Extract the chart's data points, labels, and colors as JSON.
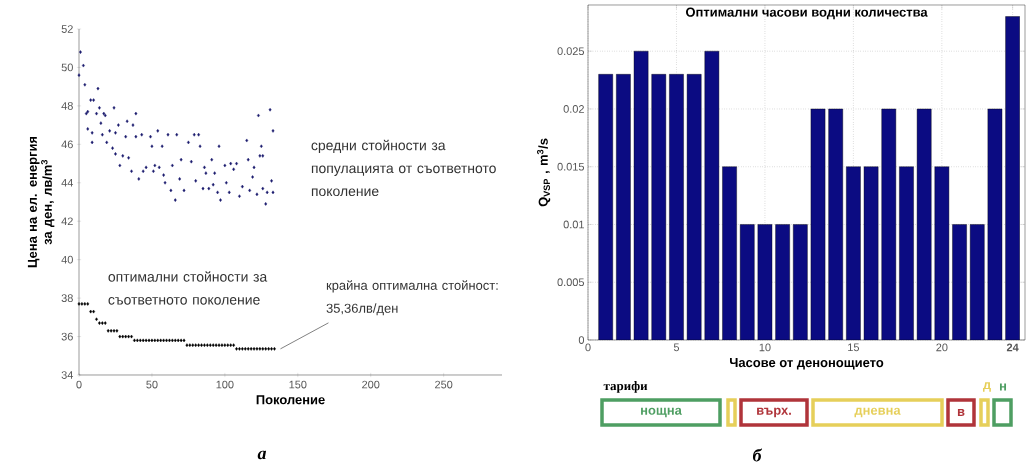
{
  "chart_data": [
    {
      "type": "scatter",
      "xlabel": "Поколение",
      "ylabel": "Цена на ел. енергия за ден, лв/m$^{3}$",
      "xlim": [
        0,
        290
      ],
      "ylim": [
        34,
        52
      ],
      "xticks": [
        0,
        50,
        100,
        150,
        200,
        250
      ],
      "yticks": [
        34,
        36,
        38,
        40,
        42,
        44,
        46,
        48,
        50,
        52
      ],
      "marker": "diamond",
      "grid": false,
      "series": [
        {
          "name": "средни стойности за популацията от съответното поколение",
          "color": "#1c1c6e",
          "x": [
            0,
            1,
            3,
            4,
            5,
            6,
            6,
            8,
            9,
            10,
            9,
            12,
            13,
            14,
            15,
            16,
            17,
            18,
            19,
            21,
            23,
            24,
            25,
            25,
            27,
            28,
            30,
            32,
            33,
            34,
            36,
            37,
            39,
            39,
            41,
            43,
            44,
            46,
            49,
            50,
            51,
            52,
            54,
            55,
            57,
            58,
            59,
            61,
            63,
            64,
            66,
            67,
            69,
            70,
            72,
            75,
            77,
            79,
            80,
            82,
            83,
            85,
            86,
            87,
            89,
            91,
            92,
            93,
            95,
            96,
            97,
            100,
            101,
            103,
            104,
            106,
            108,
            110,
            112,
            115,
            116,
            117,
            119,
            120,
            122,
            123,
            124,
            125,
            126,
            126,
            128,
            129,
            131,
            132,
            133,
            133
          ],
          "values": [
            49.6,
            50.8,
            50.1,
            49.1,
            47.6,
            47.7,
            46.8,
            48.3,
            46.1,
            48.3,
            46.6,
            47.6,
            48.9,
            47.9,
            47.1,
            46.5,
            47.6,
            47.5,
            46.1,
            46.7,
            45.8,
            47.9,
            46.6,
            45.5,
            47.0,
            44.9,
            45.4,
            46.4,
            47.2,
            45.3,
            44.6,
            47.0,
            46.4,
            47.6,
            44.2,
            46.5,
            44.6,
            44.8,
            46.4,
            45.9,
            44.6,
            44.9,
            46.7,
            44.8,
            45.9,
            44.4,
            44.0,
            46.5,
            43.6,
            44.9,
            43.1,
            46.5,
            44.2,
            45.2,
            43.6,
            46.1,
            45.1,
            46.5,
            44.1,
            46.5,
            45.9,
            43.7,
            44.8,
            44.5,
            43.7,
            45.2,
            43.9,
            44.5,
            43.5,
            45.9,
            43.1,
            44.9,
            44.0,
            43.5,
            45.0,
            44.7,
            45.0,
            43.3,
            43.8,
            46.2,
            45.2,
            43.6,
            44.3,
            44.8,
            43.4,
            47.5,
            45.4,
            45.9,
            45.4,
            43.7,
            42.9,
            43.5,
            47.8,
            44.1,
            46.7,
            43.5
          ]
        },
        {
          "name": "оптимални стойности за съответното поколение",
          "color": "#000000",
          "x": [
            0,
            2,
            4,
            6,
            8,
            10,
            12,
            14,
            16,
            18,
            20,
            22,
            24,
            26,
            28,
            30,
            32,
            34,
            36,
            38,
            40,
            42,
            44,
            46,
            48,
            50,
            52,
            54,
            56,
            58,
            60,
            62,
            64,
            66,
            68,
            70,
            72,
            74,
            76,
            78,
            80,
            82,
            84,
            86,
            88,
            90,
            92,
            94,
            96,
            98,
            100,
            102,
            104,
            106,
            108,
            110,
            112,
            114,
            116,
            118,
            120,
            122,
            124,
            126,
            128,
            130,
            132,
            134
          ],
          "values": [
            37.7,
            37.7,
            37.7,
            37.7,
            37.3,
            37.3,
            36.9,
            36.7,
            36.7,
            36.7,
            36.3,
            36.3,
            36.3,
            36.3,
            36.0,
            36.0,
            36.0,
            36.0,
            36.0,
            35.8,
            35.8,
            35.8,
            35.8,
            35.8,
            35.8,
            35.8,
            35.8,
            35.8,
            35.8,
            35.8,
            35.8,
            35.8,
            35.8,
            35.8,
            35.8,
            35.8,
            35.8,
            35.55,
            35.55,
            35.55,
            35.55,
            35.55,
            35.55,
            35.55,
            35.55,
            35.55,
            35.55,
            35.55,
            35.55,
            35.55,
            35.55,
            35.55,
            35.55,
            35.55,
            35.36,
            35.36,
            35.36,
            35.36,
            35.36,
            35.36,
            35.36,
            35.36,
            35.36,
            35.36,
            35.36,
            35.36,
            35.36,
            35.36
          ]
        }
      ],
      "annotations": [
        {
          "text": "крайна оптимална стойност: 35,36лв/ден",
          "x": 134,
          "y": 35.36
        },
        "а"
      ]
    },
    {
      "type": "bar",
      "title": "Оптимални часови водни количества",
      "xlabel": "Часове от денонощието",
      "ylabel": "Q$_{VSP}$ , m$^{3}$/s",
      "xlim": [
        0,
        24.7
      ],
      "ylim": [
        0,
        0.029
      ],
      "xticks": [
        0,
        5,
        10,
        15,
        20,
        {
          "value": 24,
          "label": "**24**"
        }
      ],
      "yticks": [
        0,
        0.005,
        0.01,
        0.015,
        0.02,
        0.025
      ],
      "grid": true,
      "x": [
        1,
        2,
        3,
        4,
        5,
        6,
        7,
        8,
        9,
        10,
        11,
        12,
        13,
        14,
        15,
        16,
        17,
        18,
        19,
        20,
        21,
        22,
        23,
        24
      ],
      "series": [
        {
          "color": "#0b0b82",
          "values": [
            0.023,
            0.023,
            0.025,
            0.023,
            0.023,
            0.023,
            0.025,
            0.015,
            0.01,
            0.01,
            0.01,
            0.01,
            0.02,
            0.02,
            0.015,
            0.015,
            0.02,
            0.015,
            0.02,
            0.015,
            0.01,
            0.01,
            0.02,
            0.028
          ]
        }
      ],
      "annotations": [
        "тарифи",
        "нощна",
        "върх.",
        "дневна",
        "в",
        "д",
        "н",
        "б"
      ]
    }
  ]
}
